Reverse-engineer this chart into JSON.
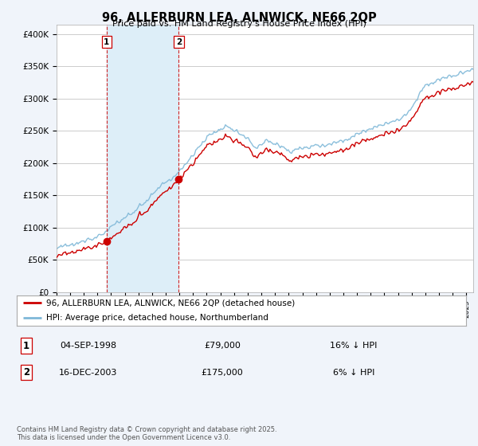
{
  "title": "96, ALLERBURN LEA, ALNWICK, NE66 2QP",
  "subtitle": "Price paid vs. HM Land Registry's House Price Index (HPI)",
  "ylabel_ticks": [
    "£0",
    "£50K",
    "£100K",
    "£150K",
    "£200K",
    "£250K",
    "£300K",
    "£350K",
    "£400K"
  ],
  "ytick_values": [
    0,
    50000,
    100000,
    150000,
    200000,
    250000,
    300000,
    350000,
    400000
  ],
  "ylim": [
    0,
    415000
  ],
  "xlim_start": 1995.0,
  "xlim_end": 2025.5,
  "background_color": "#f0f4fa",
  "plot_bg_color": "#ffffff",
  "grid_color": "#cccccc",
  "hpi_color": "#7fb8d8",
  "price_color": "#cc0000",
  "vline_color": "#cc0000",
  "shade_color": "#ddeef8",
  "purchase1_x": 1998.674,
  "purchase1_y": 79000,
  "purchase2_x": 2003.956,
  "purchase2_y": 175000,
  "legend_entry1": "96, ALLERBURN LEA, ALNWICK, NE66 2QP (detached house)",
  "legend_entry2": "HPI: Average price, detached house, Northumberland",
  "table_row1_num": "1",
  "table_row1_date": "04-SEP-1998",
  "table_row1_price": "£79,000",
  "table_row1_hpi": "16% ↓ HPI",
  "table_row2_num": "2",
  "table_row2_date": "16-DEC-2003",
  "table_row2_price": "£175,000",
  "table_row2_hpi": "6% ↓ HPI",
  "footnote": "Contains HM Land Registry data © Crown copyright and database right 2025.\nThis data is licensed under the Open Government Licence v3.0."
}
